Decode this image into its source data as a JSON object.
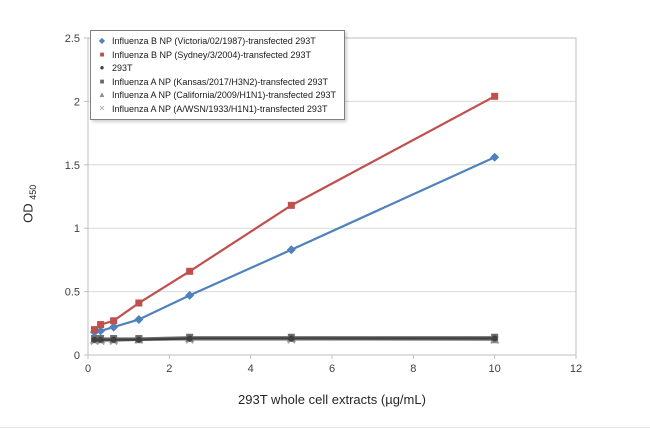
{
  "chart_data": {
    "type": "line",
    "title": "",
    "xlabel": "293T whole cell extracts (µg/mL)",
    "ylabel_main": "OD",
    "ylabel_sub": "450",
    "xlim": [
      0,
      12
    ],
    "ylim": [
      0,
      2.5
    ],
    "xticks": [
      "0",
      "2",
      "4",
      "6",
      "8",
      "10",
      "12"
    ],
    "yticks": [
      "0",
      "0.5",
      "1",
      "1.5",
      "2",
      "2.5"
    ],
    "grid": "horizontal",
    "legend_position": "top-left-inside",
    "x": [
      0.16,
      0.31,
      0.63,
      1.25,
      2.5,
      5,
      10
    ],
    "series": [
      {
        "name": "Influenza B NP (Victoria/02/1987)-transfected 293T",
        "marker": "diamond",
        "color": "#4f81bd",
        "values": [
          0.18,
          0.19,
          0.22,
          0.28,
          0.47,
          0.83,
          1.56
        ]
      },
      {
        "name": "Influenza B NP (Sydney/3/2004)-transfected 293T",
        "marker": "square",
        "color": "#c0504d",
        "values": [
          0.2,
          0.24,
          0.27,
          0.41,
          0.66,
          1.18,
          2.04
        ]
      },
      {
        "name": "293T",
        "marker": "circle",
        "color": "#404040",
        "values": [
          0.12,
          0.12,
          0.12,
          0.12,
          0.13,
          0.13,
          0.13
        ]
      },
      {
        "name": "Influenza A NP (Kansas/2017/H3N2)-transfected 293T",
        "marker": "square",
        "color": "#6d6d6d",
        "values": [
          0.13,
          0.13,
          0.13,
          0.13,
          0.14,
          0.14,
          0.14
        ]
      },
      {
        "name": "Influenza A NP (California/2009/H1N1)-transfected 293T",
        "marker": "triangle",
        "color": "#8c8c8c",
        "values": [
          0.12,
          0.12,
          0.12,
          0.12,
          0.13,
          0.13,
          0.12
        ]
      },
      {
        "name": "Influenza A NP (A/WSN/1933/H1N1)-transfected 293T",
        "marker": "x",
        "color": "#a6a6a6",
        "values": [
          0.11,
          0.11,
          0.11,
          0.12,
          0.12,
          0.12,
          0.12
        ]
      }
    ]
  },
  "colors": {
    "grid": "#d9d9d9",
    "axis": "#bfbfbf",
    "tick_text": "#404040",
    "legend_border": "#808080"
  }
}
